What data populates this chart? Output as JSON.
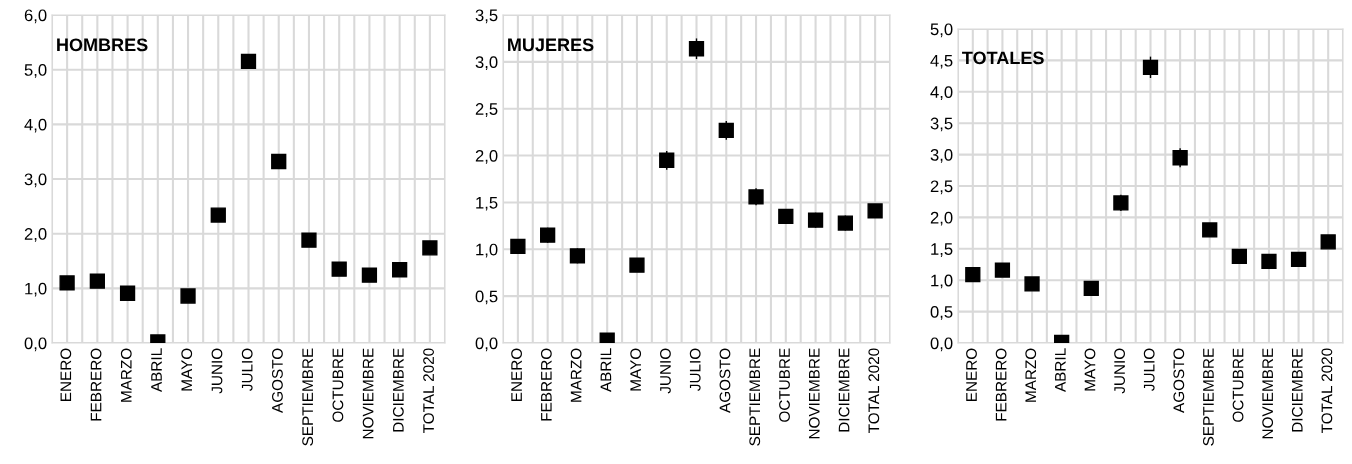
{
  "chart_data": [
    {
      "type": "scatter",
      "title": "HOMBRES",
      "categories": [
        "ENERO",
        "FEBRERO",
        "MARZO",
        "ABRIL",
        "MAYO",
        "JUNIO",
        "JULIO",
        "AGOSTO",
        "SEPTIEMBRE",
        "OCTUBRE",
        "NOVIEMBRE",
        "DICIEMBRE",
        "TOTAL 2020"
      ],
      "series": [
        {
          "color": "#000000",
          "values": [
            1.1,
            1.13,
            0.91,
            0.02,
            0.86,
            2.34,
            5.15,
            3.32,
            1.88,
            1.35,
            1.24,
            1.34,
            1.74
          ],
          "errors": [
            0.05,
            0.05,
            0.05,
            null,
            0.05,
            0.06,
            0.12,
            0.1,
            0.06,
            0.05,
            0.05,
            0.05,
            0.04
          ]
        }
      ],
      "ylim": [
        0,
        6
      ],
      "yticks": [
        {
          "value": 0,
          "label": "0,0"
        },
        {
          "value": 1,
          "label": "1,0"
        },
        {
          "value": 2,
          "label": "2,0"
        },
        {
          "value": 3,
          "label": "3,0"
        },
        {
          "value": 4,
          "label": "4,0"
        },
        {
          "value": 5,
          "label": "5,0"
        },
        {
          "value": 6,
          "label": "6,0"
        }
      ],
      "grid": true,
      "marker": "square"
    },
    {
      "type": "scatter",
      "title": "MUJERES",
      "categories": [
        "ENERO",
        "FEBRERO",
        "MARZO",
        "ABRIL",
        "MAYO",
        "JUNIO",
        "JULIO",
        "AGOSTO",
        "SEPTIEMBRE",
        "OCTUBRE",
        "NOVIEMBRE",
        "DICIEMBRE",
        "TOTAL 2020"
      ],
      "series": [
        {
          "color": "#000000",
          "values": [
            1.03,
            1.15,
            0.93,
            0.03,
            0.83,
            1.95,
            3.14,
            2.27,
            1.56,
            1.35,
            1.31,
            1.28,
            1.41
          ],
          "errors": [
            0.08,
            0.08,
            0.08,
            null,
            0.07,
            0.1,
            0.11,
            0.1,
            0.09,
            0.08,
            0.08,
            0.08,
            0.05
          ]
        }
      ],
      "ylim": [
        0,
        3.5
      ],
      "yticks": [
        {
          "value": 0,
          "label": "0,0"
        },
        {
          "value": 0.5,
          "label": "0,5"
        },
        {
          "value": 1,
          "label": "1,0"
        },
        {
          "value": 1.5,
          "label": "1,5"
        },
        {
          "value": 2,
          "label": "2,0"
        },
        {
          "value": 2.5,
          "label": "2,5"
        },
        {
          "value": 3,
          "label": "3,0"
        },
        {
          "value": 3.5,
          "label": "3,5"
        }
      ],
      "grid": true,
      "marker": "square"
    },
    {
      "type": "scatter",
      "title": "TOTALES",
      "categories": [
        "ENERO",
        "FEBRERO",
        "MARZO",
        "ABRIL",
        "MAYO",
        "JUNIO",
        "JULIO",
        "AGOSTO",
        "SEPTIEMBRE",
        "OCTUBRE",
        "NOVIEMBRE",
        "DICIEMBRE",
        "TOTAL 2020"
      ],
      "series": [
        {
          "color": "#000000",
          "values": [
            1.09,
            1.16,
            0.94,
            0.01,
            0.87,
            2.23,
            4.39,
            2.95,
            1.8,
            1.38,
            1.3,
            1.33,
            1.61
          ],
          "errors": [
            0.07,
            0.07,
            0.07,
            null,
            0.06,
            0.13,
            0.17,
            0.15,
            0.1,
            0.08,
            0.08,
            0.08,
            0.04
          ]
        }
      ],
      "ylim": [
        0,
        5
      ],
      "yticks": [
        {
          "value": 0,
          "label": "0,0"
        },
        {
          "value": 0.5,
          "label": "0,5"
        },
        {
          "value": 1,
          "label": "1,0"
        },
        {
          "value": 1.5,
          "label": "1,5"
        },
        {
          "value": 2,
          "label": "2,0"
        },
        {
          "value": 2.5,
          "label": "2,5"
        },
        {
          "value": 3,
          "label": "3,0"
        },
        {
          "value": 3.5,
          "label": "3,5"
        },
        {
          "value": 4,
          "label": "4,0"
        },
        {
          "value": 4.5,
          "label": "4,5"
        },
        {
          "value": 5,
          "label": "5,0"
        }
      ],
      "grid": true,
      "marker": "square"
    }
  ]
}
